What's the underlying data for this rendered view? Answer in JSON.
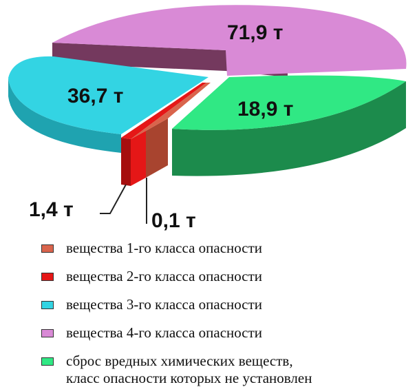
{
  "chart_data": {
    "type": "pie",
    "slices": [
      {
        "label": "вещества 1-го класса опасности",
        "value": 0.1,
        "value_label": "0,1 т",
        "color": "#d9644c",
        "side_color": "#a8442f"
      },
      {
        "label": "вещества 2-го класса опасности",
        "value": 1.4,
        "value_label": "1,4 т",
        "color": "#e51717",
        "side_color": "#a60e0e"
      },
      {
        "label": "вещества 3-го класса опасности",
        "value": 36.7,
        "value_label": "36,7 т",
        "color": "#33d4e3",
        "side_color": "#1fa3b0"
      },
      {
        "label": "вещества 4-го класса опасности",
        "value": 71.9,
        "value_label": "71,9 т",
        "color": "#d98ad6",
        "side_color": "#74395e"
      },
      {
        "label": "сброс вредных химических веществ,\nкласс опасности которых не установлен",
        "value": 18.9,
        "value_label": "18,9 т",
        "color": "#30e884",
        "side_color": "#1c8b4c"
      }
    ],
    "exploded": true,
    "three_d": true,
    "legend_position": "bottom"
  }
}
